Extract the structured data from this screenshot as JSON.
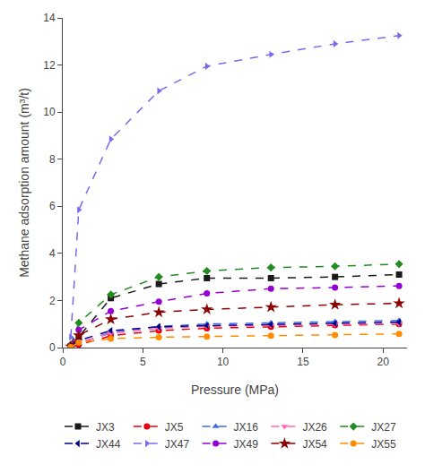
{
  "chart_data": {
    "type": "line",
    "xlabel": "Pressure (MPa)",
    "ylabel": "Methane adsorption amount (m³/t)",
    "xlim": [
      0,
      21.5
    ],
    "xticks": [
      0,
      5,
      10,
      15,
      20
    ],
    "ylim": [
      0,
      14
    ],
    "yticks": [
      0,
      2,
      4,
      6,
      8,
      10,
      12,
      14
    ],
    "grid": false,
    "legend": "bottom",
    "line_style": "dashed",
    "x": [
      0.5,
      1,
      3,
      6,
      9,
      13,
      17,
      21
    ],
    "series": [
      {
        "name": "JX3",
        "color": "#1a1a1a",
        "marker": "square",
        "values": [
          0.05,
          0.45,
          2.1,
          2.7,
          2.95,
          2.95,
          3.0,
          3.1
        ]
      },
      {
        "name": "JX5",
        "color": "#e8000d",
        "marker": "circle",
        "values": [
          0.02,
          0.12,
          0.5,
          0.72,
          0.82,
          0.88,
          0.95,
          1.0
        ]
      },
      {
        "name": "JX16",
        "color": "#4169e1",
        "marker": "triangle-up",
        "values": [
          0.04,
          0.18,
          0.65,
          0.9,
          1.0,
          1.05,
          1.1,
          1.15
        ]
      },
      {
        "name": "JX26",
        "color": "#ff69b4",
        "marker": "triangle-down",
        "values": [
          0.04,
          0.22,
          0.6,
          0.82,
          0.9,
          0.95,
          0.98,
          1.02
        ]
      },
      {
        "name": "JX27",
        "color": "#228b22",
        "marker": "diamond",
        "values": [
          0.12,
          1.05,
          2.25,
          3.0,
          3.25,
          3.4,
          3.45,
          3.55
        ]
      },
      {
        "name": "JX44",
        "color": "#00008b",
        "marker": "triangle-left",
        "values": [
          0.06,
          0.3,
          0.72,
          0.88,
          0.93,
          0.98,
          1.02,
          1.08
        ]
      },
      {
        "name": "JX47",
        "color": "#7b68ee",
        "marker": "triangle-right",
        "values": [
          0.45,
          5.85,
          8.85,
          10.9,
          11.95,
          12.45,
          12.9,
          13.25
        ]
      },
      {
        "name": "JX49",
        "color": "#9400d3",
        "marker": "circle",
        "values": [
          0.08,
          0.75,
          1.55,
          1.95,
          2.3,
          2.5,
          2.55,
          2.62
        ]
      },
      {
        "name": "JX54",
        "color": "#8b0000",
        "marker": "star",
        "values": [
          0.04,
          0.52,
          1.2,
          1.5,
          1.62,
          1.72,
          1.82,
          1.88
        ]
      },
      {
        "name": "JX55",
        "color": "#ff8c00",
        "marker": "circle",
        "values": [
          0.02,
          0.22,
          0.38,
          0.44,
          0.47,
          0.5,
          0.53,
          0.58
        ]
      }
    ]
  }
}
